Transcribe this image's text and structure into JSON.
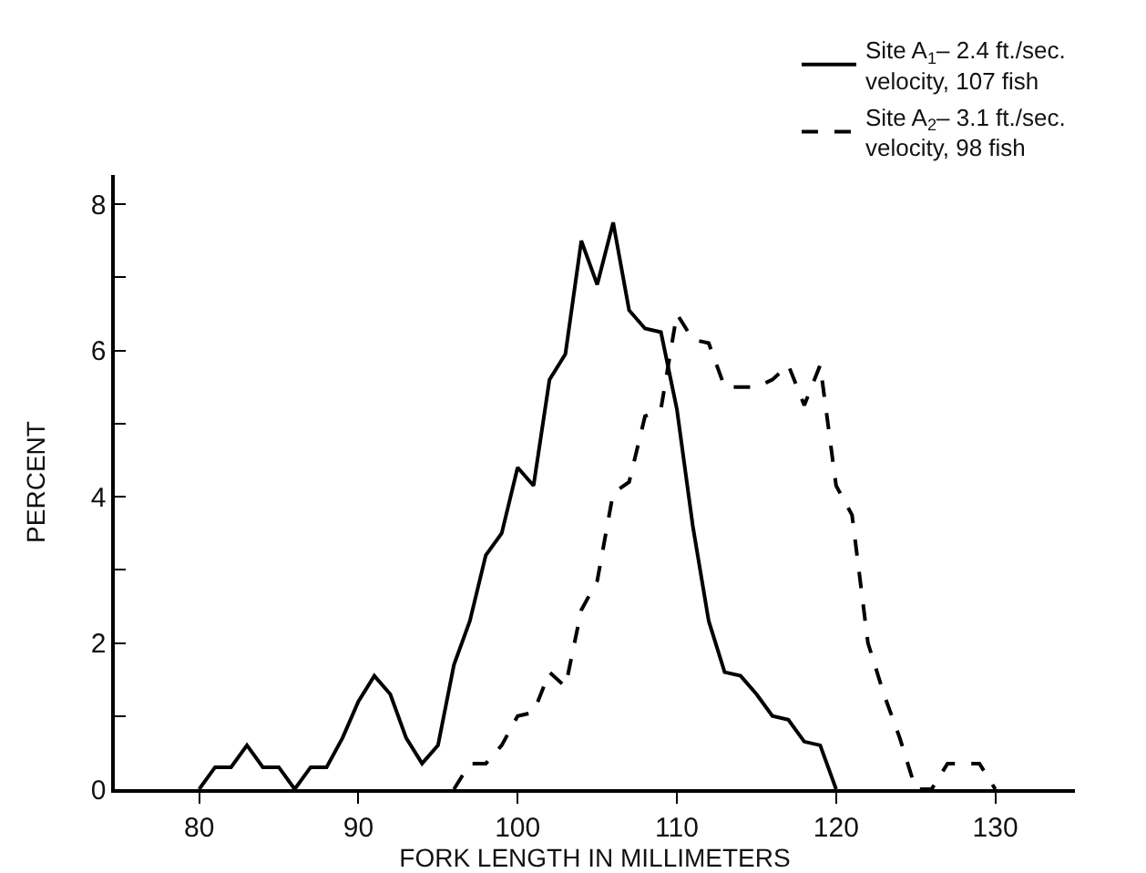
{
  "chart_data": {
    "type": "line",
    "xlabel": "FORK LENGTH IN MILLIMETERS",
    "ylabel": "PERCENT",
    "xlim": [
      74.7,
      135
    ],
    "xticks": [
      80,
      90,
      100,
      110,
      120,
      130
    ],
    "ylim": [
      0,
      8.4
    ],
    "yticks": [
      0,
      {
        "value": 1,
        "label": null
      },
      2,
      {
        "value": 3,
        "label": null
      },
      4,
      {
        "value": 5,
        "label": null
      },
      6,
      {
        "value": 7,
        "label": null
      },
      8
    ],
    "legend": "top right",
    "grid": false,
    "marker": "none",
    "series": [
      {
        "name": "Site A$_{1}$– 2.4 ft./sec.\nvelocity, 107 fish",
        "color": "#000000",
        "line_style": "solid",
        "x": [
          80,
          81,
          82,
          83,
          84,
          85,
          86,
          87,
          88,
          89,
          90,
          91,
          92,
          93,
          94,
          95,
          96,
          97,
          98,
          99,
          100,
          101,
          102,
          103,
          104,
          105,
          106,
          107,
          108,
          109,
          110,
          111,
          112,
          113,
          114,
          115,
          116,
          117,
          118,
          119,
          120
        ],
        "values": [
          0,
          0.3,
          0.3,
          0.6,
          0.3,
          0.3,
          0,
          0.3,
          0.3,
          0.7,
          1.2,
          1.55,
          1.3,
          0.7,
          0.35,
          0.6,
          1.7,
          2.3,
          3.2,
          3.5,
          4.4,
          4.15,
          5.6,
          5.95,
          7.5,
          6.9,
          7.75,
          6.55,
          6.3,
          6.25,
          5.2,
          3.6,
          2.3,
          1.6,
          1.55,
          1.3,
          1.0,
          0.95,
          0.65,
          0.6,
          0
        ]
      },
      {
        "name": "Site A$_{2}$– 3.1 ft./sec.\nvelocity, 98 fish",
        "color": "#000000",
        "line_style": "dashed",
        "x": [
          96,
          97,
          98,
          99,
          100,
          101,
          102,
          103,
          104,
          105,
          106,
          107,
          108,
          109,
          110,
          111,
          112,
          113,
          114,
          115,
          116,
          117,
          118,
          119,
          120,
          121,
          122,
          123,
          124,
          125,
          126,
          127,
          128,
          129,
          130
        ],
        "values": [
          0,
          0.35,
          0.35,
          0.6,
          1.0,
          1.05,
          1.6,
          1.4,
          2.45,
          2.85,
          4.05,
          4.2,
          5.1,
          5.2,
          6.5,
          6.15,
          6.1,
          5.5,
          5.5,
          5.5,
          5.6,
          5.8,
          5.25,
          5.8,
          4.15,
          3.75,
          2.0,
          1.3,
          0.7,
          0,
          0,
          0.35,
          0.35,
          0.35,
          0
        ]
      }
    ]
  }
}
